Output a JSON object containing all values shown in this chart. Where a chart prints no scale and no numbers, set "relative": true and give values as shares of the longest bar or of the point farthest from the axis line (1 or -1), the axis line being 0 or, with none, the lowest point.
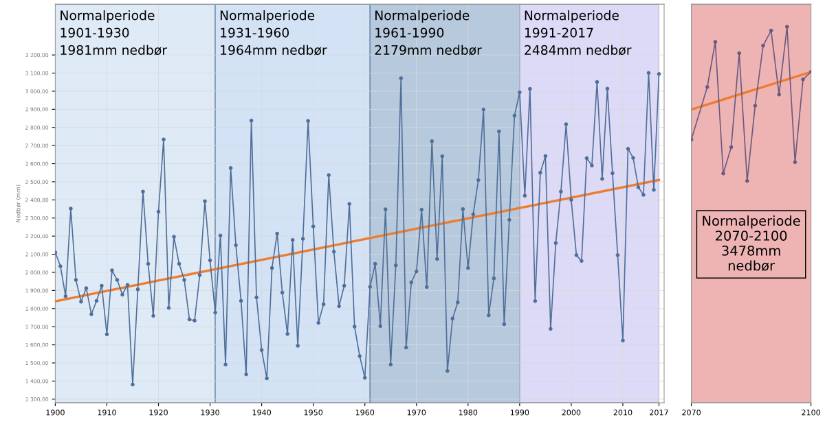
{
  "chart_data": [
    {
      "type": "line",
      "ylabel": "Nedbør (mm)",
      "grid": true,
      "legend": false,
      "marker": "circle",
      "line_style": "solid",
      "x": [
        1900,
        1901,
        1902,
        1903,
        1904,
        1905,
        1906,
        1907,
        1908,
        1909,
        1910,
        1911,
        1912,
        1913,
        1914,
        1915,
        1916,
        1917,
        1918,
        1919,
        1920,
        1921,
        1922,
        1923,
        1924,
        1925,
        1926,
        1927,
        1928,
        1929,
        1930,
        1931,
        1932,
        1933,
        1934,
        1935,
        1936,
        1937,
        1938,
        1939,
        1940,
        1941,
        1942,
        1943,
        1944,
        1945,
        1946,
        1947,
        1948,
        1949,
        1950,
        1951,
        1952,
        1953,
        1954,
        1955,
        1956,
        1957,
        1958,
        1959,
        1960,
        1961,
        1962,
        1963,
        1964,
        1965,
        1966,
        1967,
        1968,
        1969,
        1970,
        1971,
        1972,
        1973,
        1974,
        1975,
        1976,
        1977,
        1978,
        1979,
        1980,
        1981,
        1982,
        1983,
        1984,
        1985,
        1986,
        1987,
        1988,
        1989,
        1990,
        1991,
        1992,
        1993,
        1994,
        1995,
        1996,
        1997,
        1998,
        1999,
        2000,
        2001,
        2002,
        2003,
        2004,
        2005,
        2006,
        2007,
        2008,
        2009,
        2010,
        2011,
        2012,
        2013,
        2014,
        2015,
        2016,
        2017
      ],
      "series": [
        {
          "color": "#4f6f9a",
          "values": [
            2110,
            2034,
            1868,
            2352,
            1958,
            1838,
            1913,
            1769,
            1843,
            1926,
            1658,
            2011,
            1958,
            1877,
            1931,
            1381,
            1906,
            2446,
            2047,
            1760,
            2335,
            2734,
            1804,
            2197,
            2047,
            1958,
            1740,
            1734,
            1985,
            2393,
            2066,
            1778,
            2203,
            1491,
            2576,
            2150,
            1843,
            1437,
            2838,
            1862,
            1571,
            1415,
            2024,
            2214,
            1888,
            1660,
            2179,
            1595,
            2185,
            2836,
            2254,
            1721,
            1824,
            2537,
            2114,
            1813,
            1926,
            2378,
            1701,
            1538,
            1418,
            1920,
            2047,
            1703,
            2348,
            1491,
            2039,
            3072,
            1585,
            1945,
            2005,
            2346,
            1919,
            2724,
            2074,
            2641,
            1456,
            1745,
            1834,
            2349,
            2024,
            2321,
            2509,
            2899,
            1763,
            1967,
            2778,
            1714,
            2290,
            2865,
            2994,
            2423,
            3013,
            1842,
            2550,
            2642,
            1688,
            2162,
            2446,
            2818,
            2400,
            2095,
            2063,
            2630,
            2590,
            3051,
            2516,
            3014,
            2547,
            2095,
            1624,
            2682,
            2632,
            2470,
            2428,
            3101,
            2455,
            3095
          ]
        },
        {
          "type": "line",
          "x": [
            1900,
            2017
          ],
          "color": "#ed7d31",
          "marker": "none",
          "values": [
            1840,
            2510
          ]
        }
      ],
      "xlim": [
        1900,
        2018
      ],
      "xticks": [
        1900,
        1910,
        1920,
        1930,
        1940,
        1950,
        1960,
        1970,
        1980,
        1990,
        2000,
        2010,
        2017
      ],
      "ylim": [
        1280,
        3480
      ],
      "yticks": [
        {
          "value": 1300,
          "label": "1 300,00"
        },
        {
          "value": 1400,
          "label": "1 400,00"
        },
        {
          "value": 1500,
          "label": "1 500,00"
        },
        {
          "value": 1600,
          "label": "1 600,00"
        },
        {
          "value": 1700,
          "label": "1 700,00"
        },
        {
          "value": 1800,
          "label": "1 800,00"
        },
        {
          "value": 1900,
          "label": "1 900,00"
        },
        {
          "value": 2000,
          "label": "2 000,00"
        },
        {
          "value": 2100,
          "label": "2 100,00"
        },
        {
          "value": 2200,
          "label": "2 200,00"
        },
        {
          "value": 2300,
          "label": "2 300,00"
        },
        {
          "value": 2400,
          "label": "2 400,00"
        },
        {
          "value": 2500,
          "label": "2 500,00"
        },
        {
          "value": 2600,
          "label": "2 600,00"
        },
        {
          "value": 2700,
          "label": "2 700,00"
        },
        {
          "value": 2800,
          "label": "2 800,00"
        },
        {
          "value": 2900,
          "label": "2 900,00"
        },
        {
          "value": 3000,
          "label": "3 000,00"
        },
        {
          "value": 3100,
          "label": "3 100,00"
        },
        {
          "value": 3200,
          "label": "3 200,00"
        }
      ],
      "bands": [
        {
          "axis": "x",
          "from": 1900,
          "to": 1931,
          "color": "#dfeaf7",
          "label": "Normalperiode\n1901-1930\n1981mm nedbør"
        },
        {
          "axis": "x",
          "from": 1931,
          "to": 1961,
          "color": "#d3e2f5",
          "label": "Normalperiode\n1931-1960\n1964mm nedbør"
        },
        {
          "axis": "x",
          "from": 1961,
          "to": 1990,
          "color": "#b7c9dd",
          "label": "Normalperiode\n1961-1990\n2179mm nedbør"
        },
        {
          "axis": "x",
          "from": 1990,
          "to": 2017,
          "color": "#dcdaf6",
          "label": "Normalperiode\n1991-2017\n2484mm nedbør"
        }
      ]
    },
    {
      "type": "line",
      "relative": true,
      "grid": false,
      "legend": false,
      "marker": "circle",
      "line_style": "solid",
      "tick_labels": "x",
      "x": [
        2070,
        2074,
        2076,
        2078,
        2080,
        2082,
        2084,
        2086,
        2088,
        2090,
        2092,
        2094,
        2096,
        2098,
        2100
      ],
      "series": [
        {
          "color": "#6a5a80",
          "values": [
            0.7,
            0.84,
            0.96,
            0.61,
            0.68,
            0.93,
            0.59,
            0.79,
            0.95,
            0.99,
            0.82,
            1,
            0.64,
            0.86,
            0.88
          ]
        },
        {
          "type": "line",
          "x": [
            2070,
            2100
          ],
          "color": "#ed7d31",
          "marker": "none",
          "values": [
            0.78,
            0.88
          ]
        }
      ],
      "xlim": [
        2070,
        2100
      ],
      "xticks": [
        2070,
        2100
      ],
      "bands": [
        {
          "axis": "x",
          "from": 2070,
          "to": 2100,
          "color": "#eeb4b4",
          "label": "Normalperiode\n2070-2100\n3478mm\nnedbør"
        }
      ]
    }
  ]
}
